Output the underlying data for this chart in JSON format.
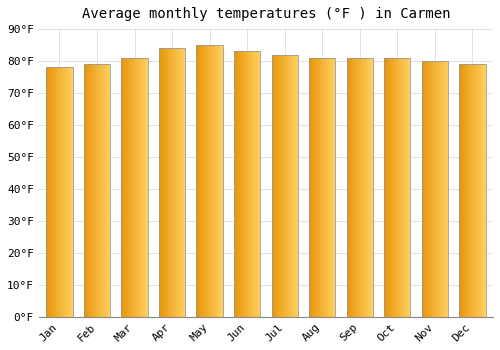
{
  "title": "Average monthly temperatures (°F ) in Carmen",
  "months": [
    "Jan",
    "Feb",
    "Mar",
    "Apr",
    "May",
    "Jun",
    "Jul",
    "Aug",
    "Sep",
    "Oct",
    "Nov",
    "Dec"
  ],
  "values": [
    78,
    79,
    81,
    84,
    85,
    83,
    82,
    81,
    81,
    81,
    80,
    79
  ],
  "ylim": [
    0,
    90
  ],
  "yticks": [
    0,
    10,
    20,
    30,
    40,
    50,
    60,
    70,
    80,
    90
  ],
  "ytick_labels": [
    "0°F",
    "10°F",
    "20°F",
    "30°F",
    "40°F",
    "50°F",
    "60°F",
    "70°F",
    "80°F",
    "90°F"
  ],
  "bar_color_left": "#E8950A",
  "bar_color_mid": "#FFC726",
  "bar_color_right": "#FFB800",
  "bar_edge_color": "#999999",
  "background_color": "#FFFFFF",
  "plot_bg_color": "#FFFFFF",
  "grid_color": "#DDDDDD",
  "title_fontsize": 10,
  "tick_fontsize": 8,
  "title_font_family": "monospace",
  "bar_width": 0.7
}
